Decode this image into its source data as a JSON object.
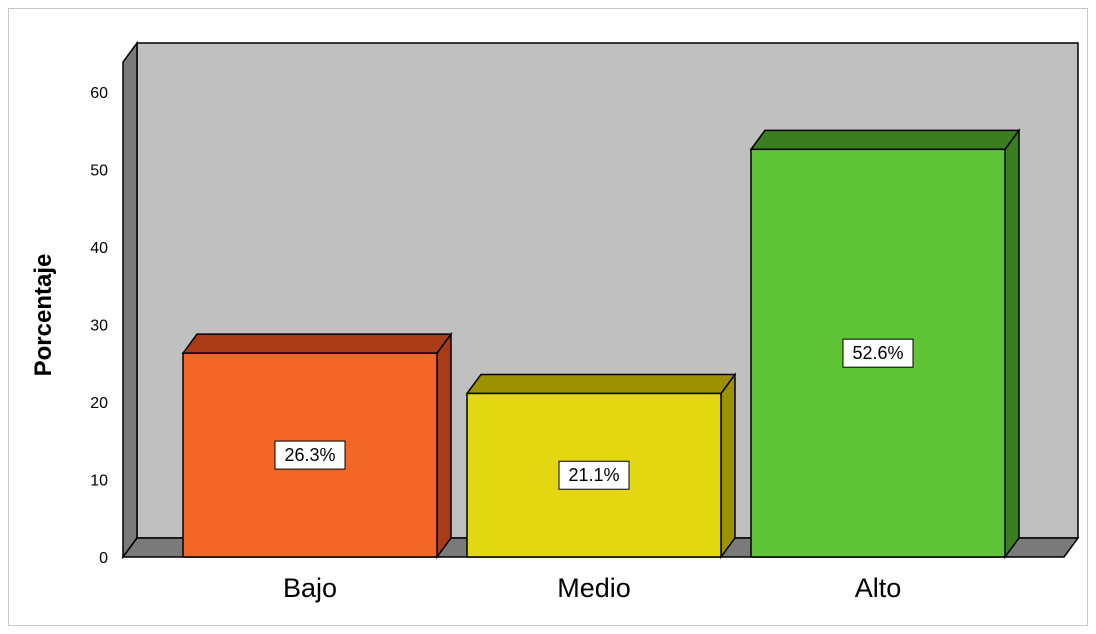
{
  "chart_data": {
    "type": "bar",
    "categories": [
      "Bajo",
      "Medio",
      "Alto"
    ],
    "values": [
      26.3,
      21.1,
      52.6
    ],
    "data_labels": [
      "26.3%",
      "21.1%",
      "52.6%"
    ],
    "ylabel": "Porcentaje",
    "xlabel": "",
    "title": "",
    "ylim": [
      0,
      60
    ],
    "yticks": [
      "0",
      "10",
      "20",
      "30",
      "40",
      "50",
      "60"
    ],
    "grid": false,
    "legend": "none",
    "three_d": true,
    "colors": {
      "bar_fronts": [
        "#f26628",
        "#e3d712",
        "#5ec335"
      ],
      "bar_tops": [
        "#a83c16",
        "#9c9100",
        "#3a7e1f"
      ],
      "bar_sides": [
        "#a83c16",
        "#9c9100",
        "#3a7e1f"
      ],
      "plot_background": "#c0c0c0",
      "floor": "#7a7a7a",
      "left_wall": "#7a7a7a"
    }
  }
}
